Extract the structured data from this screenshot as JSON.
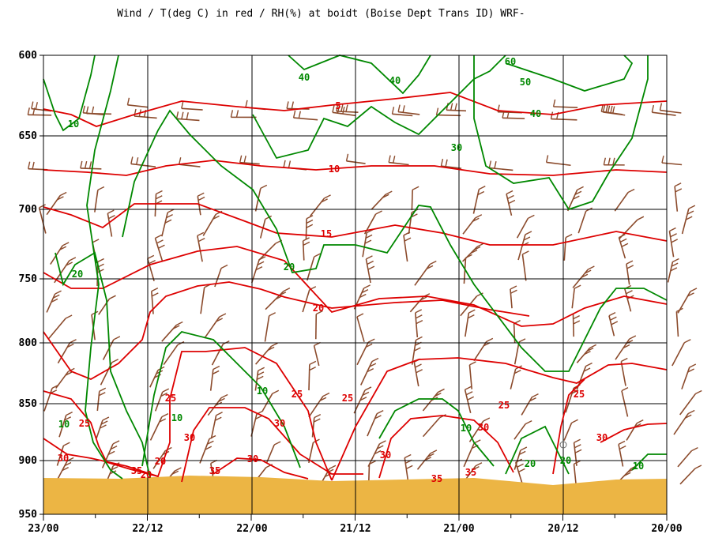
{
  "chart_data": {
    "type": "line",
    "title": "Wind / T(deg C) in red / RH(%) at boidt (Boise Dept Trans ID)  WRF-",
    "x_axis": {
      "ticks": [
        "23/00",
        "22/12",
        "22/00",
        "21/12",
        "21/00",
        "20/12",
        "20/00"
      ],
      "reversed": true
    },
    "y_axis": {
      "unit": "hPa",
      "ticks": [
        600,
        650,
        700,
        750,
        800,
        850,
        900,
        950
      ],
      "range": [
        600,
        950
      ]
    },
    "grid": true,
    "colors": {
      "temperature": "#dd0000",
      "rh": "#008800",
      "wind": "#8b4a2b",
      "terrain": "#ecb544"
    },
    "series": [
      {
        "name": "T(deg C)",
        "contour_labels": [
          "5",
          "10",
          "15",
          "20",
          "25",
          "25",
          "25",
          "25",
          "25",
          "25",
          "30",
          "30",
          "30",
          "30",
          "30",
          "30",
          "30",
          "35",
          "35",
          "35",
          "35",
          "20",
          "20"
        ]
      },
      {
        "name": "RH(%)",
        "contour_labels": [
          "10",
          "20",
          "20",
          "30",
          "40",
          "40",
          "40",
          "50",
          "60",
          "10",
          "10",
          "10",
          "10",
          "10",
          "20",
          "20"
        ]
      }
    ],
    "terrain_pressure_hpa": 915
  }
}
